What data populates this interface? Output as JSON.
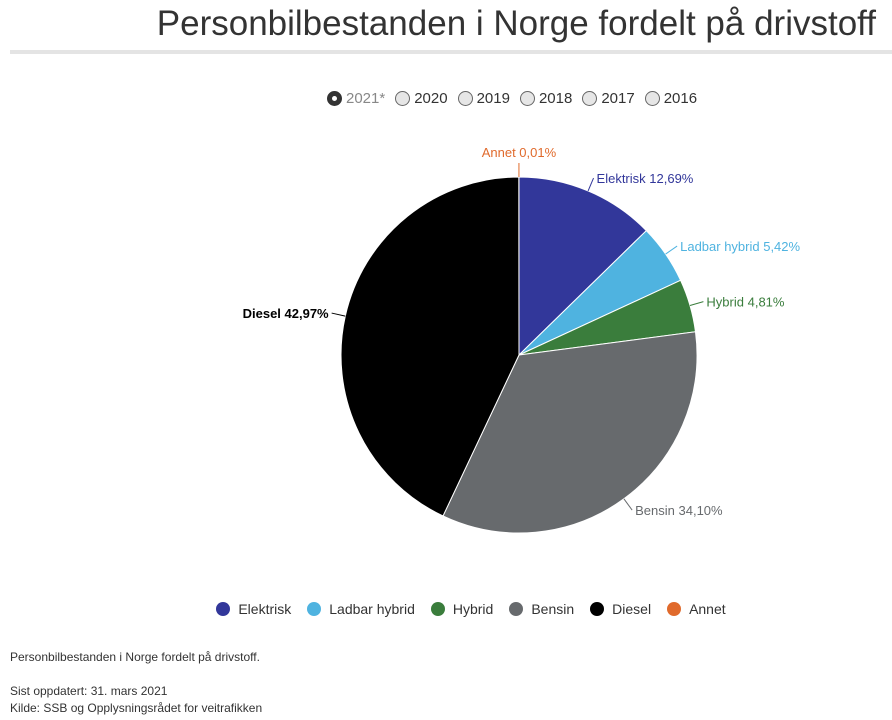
{
  "title": "Personbilbestanden i Norge fordelt på drivstoff",
  "years": [
    "2021*",
    "2020",
    "2019",
    "2018",
    "2017",
    "2016"
  ],
  "selected_year": "2021*",
  "chart_data": {
    "type": "pie",
    "title": "Personbilbestanden i Norge fordelt på drivstoff",
    "categories": [
      "Elektrisk",
      "Ladbar hybrid",
      "Hybrid",
      "Bensin",
      "Diesel",
      "Annet"
    ],
    "values": [
      12.69,
      5.42,
      4.81,
      34.1,
      42.97,
      0.01
    ],
    "labels": [
      "Elektrisk 12,69%",
      "Ladbar hybrid 5,42%",
      "Hybrid 4,81%",
      "Bensin 34,10%",
      "Diesel 42,97%",
      "Annet 0,01%"
    ],
    "colors": [
      "#32379a",
      "#4fb3e0",
      "#3a7d3c",
      "#676a6d",
      "#000000",
      "#e06a2c"
    ],
    "label_colors": [
      "#32379a",
      "#4fb3e0",
      "#3a7d3c",
      "#676a6d",
      "#000000",
      "#e06a2c"
    ],
    "legend_placement": "bottom"
  },
  "footer": {
    "description": "Personbilbestanden i Norge fordelt på drivstoff.",
    "updated": "Sist oppdatert: 31. mars 2021",
    "source": "Kilde: SSB og Opplysningsrådet for veitrafikken"
  }
}
